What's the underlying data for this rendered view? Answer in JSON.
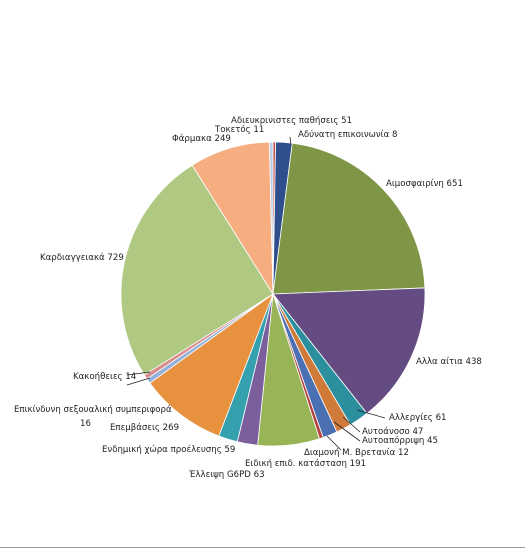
{
  "chart_data": {
    "type": "pie",
    "title": "",
    "legend": "none",
    "slices": [
      {
        "label": "Αδύνατη επικοινωνία",
        "value": 8,
        "color": "#c0504d",
        "text": "Αδύνατη επικοινωνία  8"
      },
      {
        "label": "Αδιευκρινιστες παθήσεις",
        "value": 51,
        "color": "#2e4f8c",
        "text": "Αδιευκρινιστες παθήσεις  51"
      },
      {
        "label": "Αιμοσφαιρίνη",
        "value": 651,
        "color": "#7f9646",
        "text": "Αιμοσφαιρίνη  651"
      },
      {
        "label": "Αλλα αίτια",
        "value": 438,
        "color": "#644c82",
        "text": "Αλλα αίτια  438"
      },
      {
        "label": "Αλλεργίες",
        "value": 61,
        "color": "#2c8f9e",
        "text": "Αλλεργίες  61"
      },
      {
        "label": "Αυτοάνοσο",
        "value": 47,
        "color": "#d07a3a",
        "text": "Αυτοάνοσο  47"
      },
      {
        "label": "Αυτοαπόρριψη",
        "value": 45,
        "color": "#4a6fb3",
        "text": "Αυτοαπόρριψη  45"
      },
      {
        "label": "Διαμονή Μ. Βρετανία",
        "value": 12,
        "color": "#b34441",
        "text": "Διαμονή Μ. Βρετανία  12"
      },
      {
        "label": "Ειδική επιδ. κατάσταση",
        "value": 191,
        "color": "#97b456",
        "text": "Ειδική επιδ. κατάσταση  191"
      },
      {
        "label": "Έλλειψη G6PD",
        "value": 63,
        "color": "#7a5f9c",
        "text": "Έλλειψη G6PD  63"
      },
      {
        "label": "Ενδημική χώρα προέλευσης",
        "value": 59,
        "color": "#35a0ae",
        "text": "Ενδημική χώρα προέλευσης  59"
      },
      {
        "label": "Επεμβάσεις",
        "value": 269,
        "color": "#e8913f",
        "text": "Επεμβάσεις  269"
      },
      {
        "label": "Επικίνδυνη σεξουαλική συμπεριφορά",
        "value": 16,
        "color": "#93b2da",
        "text": "Επικίνδυνη σεξουαλική συμπεριφορά",
        "text2": "16"
      },
      {
        "label": "Κακοήθειες",
        "value": 14,
        "color": "#d98a8a",
        "text": "Κακοήθειες  14"
      },
      {
        "label": "Καρδιαγγειακά",
        "value": 729,
        "color": "#afc982",
        "text": "Καρδιαγγειακά  729"
      },
      {
        "label": "Φάρμακα",
        "value": 249,
        "color": "#f6ae80",
        "text": "Φάρμακα  249"
      },
      {
        "label": "Τοκετός",
        "value": 11,
        "color": "#b7cce7",
        "text": "Τοκετός  11"
      }
    ]
  }
}
